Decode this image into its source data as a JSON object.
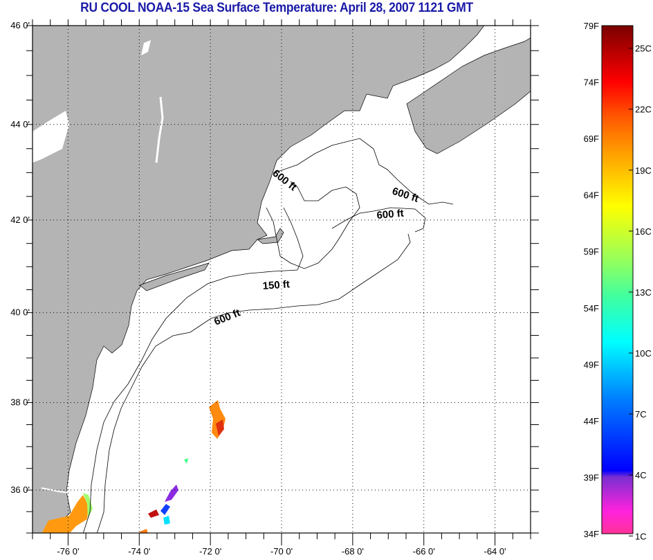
{
  "title": "RU COOL  NOAA-15  Sea Surface Temperature:  April 28, 2007 1121 GMT",
  "map": {
    "lon_range": [
      -77,
      -63
    ],
    "lat_range": [
      35,
      46
    ],
    "lat_ticks": [
      {
        "value": 46,
        "label": "46 0'"
      },
      {
        "value": 44,
        "label": "44 0'"
      },
      {
        "value": 42,
        "label": "42 0'"
      },
      {
        "value": 40,
        "label": "40 0'"
      },
      {
        "value": 38,
        "label": "38 0'"
      },
      {
        "value": 36,
        "label": "36 0'"
      }
    ],
    "lon_ticks": [
      {
        "value": -76,
        "label": "-76 0'"
      },
      {
        "value": -74,
        "label": "-74 0'"
      },
      {
        "value": -72,
        "label": "-72 0'"
      },
      {
        "value": -70,
        "label": "-70 0'"
      },
      {
        "value": -68,
        "label": "-68 0'"
      },
      {
        "value": -66,
        "label": "-66 0'"
      },
      {
        "value": -64,
        "label": "-64 0'"
      }
    ],
    "contour_labels": [
      "600 ft",
      "600 ft",
      "600 ft",
      "150 ft",
      "600 ft"
    ],
    "colors": {
      "land": "#b4b4b4",
      "water": "#ffffff",
      "contour": "#000000",
      "title": "#1a1aa8"
    }
  },
  "colorbar": {
    "f_range": [
      34,
      79
    ],
    "f_labels": [
      "79F",
      "74F",
      "69F",
      "64F",
      "59F",
      "54F",
      "49F",
      "44F",
      "39F",
      "34F"
    ],
    "f_values": [
      79,
      74,
      69,
      64,
      59,
      54,
      49,
      44,
      39,
      34
    ],
    "c_labels": [
      "25C",
      "22C",
      "19C",
      "16C",
      "13C",
      "10C",
      "7C",
      "4C",
      "1C"
    ],
    "c_values": [
      25,
      22,
      19,
      16,
      13,
      10,
      7,
      4,
      1
    ],
    "stops": [
      {
        "f": 34,
        "color": "#ff3399"
      },
      {
        "f": 36,
        "color": "#ff22dd"
      },
      {
        "f": 39,
        "color": "#7a2fd0"
      },
      {
        "f": 39.6,
        "color": "#0000ff"
      },
      {
        "f": 46,
        "color": "#0080ff"
      },
      {
        "f": 51,
        "color": "#00ffff"
      },
      {
        "f": 55,
        "color": "#40ffa0"
      },
      {
        "f": 58,
        "color": "#90ff60"
      },
      {
        "f": 63,
        "color": "#ffff00"
      },
      {
        "f": 68,
        "color": "#ff9900"
      },
      {
        "f": 71,
        "color": "#ff5500"
      },
      {
        "f": 74,
        "color": "#ff0000"
      },
      {
        "f": 79,
        "color": "#7a0000"
      }
    ]
  }
}
